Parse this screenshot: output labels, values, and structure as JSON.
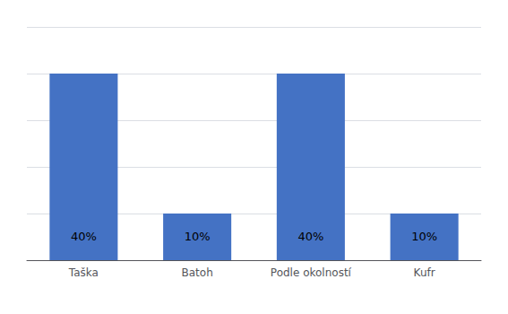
{
  "chart_data": {
    "type": "bar",
    "categories": [
      "Taška",
      "Batoh",
      "Podle okolností",
      "Kufr"
    ],
    "values": [
      40,
      10,
      40,
      10
    ],
    "value_labels": [
      "40%",
      "10%",
      "40%",
      "10%"
    ],
    "color": "#4472C4",
    "ylim": [
      0,
      50
    ],
    "yticks": [
      0,
      10,
      20,
      30,
      40,
      50
    ],
    "grid": true,
    "data_labels": true,
    "tick_labels": "x"
  }
}
